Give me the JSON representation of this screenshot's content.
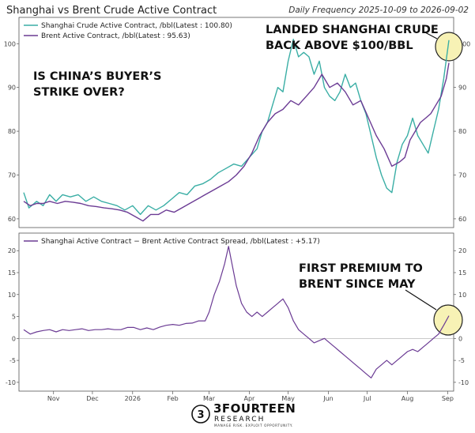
{
  "header": {
    "title": "Shanghai vs Brent Crude Active Contract",
    "subtitle": "Daily Frequency 2025-10-09 to 2026-09-02"
  },
  "colors": {
    "shanghai": "#3aaea5",
    "brent": "#6b3b94",
    "spread": "#6b3b94",
    "highlight_fill": "#f7f2b5",
    "highlight_stroke": "#222222"
  },
  "chart_data": [
    {
      "type": "line",
      "ylim": [
        58,
        106
      ],
      "yticks": [
        60,
        70,
        80,
        90,
        100
      ],
      "x_range": [
        0,
        328
      ],
      "annotations": [
        "IS CHINA’S BUYER’S",
        "STRIKE OVER?",
        "LANDED SHANGHAI CRUDE",
        "BACK ABOVE $100/BBL"
      ],
      "series": [
        {
          "name": "Shanghai Crude Active Contract, /bbl(Latest : 100.80)",
          "points": [
            [
              0,
              66
            ],
            [
              4,
              62.5
            ],
            [
              10,
              64
            ],
            [
              15,
              63
            ],
            [
              20,
              65.5
            ],
            [
              25,
              64
            ],
            [
              30,
              65.5
            ],
            [
              36,
              65
            ],
            [
              42,
              65.5
            ],
            [
              48,
              64
            ],
            [
              54,
              65
            ],
            [
              60,
              64
            ],
            [
              66,
              63.5
            ],
            [
              72,
              63
            ],
            [
              78,
              62
            ],
            [
              84,
              63
            ],
            [
              90,
              61
            ],
            [
              96,
              63
            ],
            [
              102,
              62
            ],
            [
              108,
              63
            ],
            [
              114,
              64.5
            ],
            [
              120,
              66
            ],
            [
              126,
              65.5
            ],
            [
              132,
              67.5
            ],
            [
              138,
              68
            ],
            [
              144,
              69
            ],
            [
              150,
              70.5
            ],
            [
              156,
              71.5
            ],
            [
              162,
              72.5
            ],
            [
              168,
              72
            ],
            [
              174,
              74
            ],
            [
              180,
              76
            ],
            [
              184,
              80
            ],
            [
              188,
              82
            ],
            [
              192,
              86
            ],
            [
              196,
              90
            ],
            [
              200,
              89
            ],
            [
              204,
              96
            ],
            [
              208,
              101
            ],
            [
              212,
              97
            ],
            [
              216,
              98
            ],
            [
              220,
              97
            ],
            [
              224,
              93
            ],
            [
              228,
              96
            ],
            [
              232,
              90
            ],
            [
              236,
              88
            ],
            [
              240,
              87
            ],
            [
              244,
              89
            ],
            [
              248,
              93
            ],
            [
              252,
              90
            ],
            [
              256,
              91
            ],
            [
              260,
              87
            ],
            [
              264,
              84
            ],
            [
              268,
              79
            ],
            [
              272,
              74
            ],
            [
              276,
              70
            ],
            [
              280,
              67
            ],
            [
              284,
              66
            ],
            [
              288,
              73
            ],
            [
              292,
              77
            ],
            [
              296,
              79
            ],
            [
              300,
              83
            ],
            [
              304,
              79
            ],
            [
              308,
              77
            ],
            [
              312,
              75
            ],
            [
              316,
              80
            ],
            [
              320,
              85
            ],
            [
              324,
              92
            ],
            [
              328,
              100.8
            ]
          ]
        },
        {
          "name": "Brent Active Contract, /bbl(Latest : 95.63)",
          "points": [
            [
              0,
              64
            ],
            [
              5,
              63
            ],
            [
              10,
              63.5
            ],
            [
              15,
              63.5
            ],
            [
              20,
              64
            ],
            [
              26,
              63.5
            ],
            [
              32,
              64
            ],
            [
              38,
              63.8
            ],
            [
              44,
              63.5
            ],
            [
              50,
              63
            ],
            [
              56,
              62.8
            ],
            [
              62,
              62.5
            ],
            [
              68,
              62.3
            ],
            [
              74,
              62
            ],
            [
              80,
              61.5
            ],
            [
              86,
              60.5
            ],
            [
              92,
              59.5
            ],
            [
              98,
              61
            ],
            [
              104,
              61
            ],
            [
              110,
              62
            ],
            [
              116,
              61.5
            ],
            [
              122,
              62.5
            ],
            [
              128,
              63.5
            ],
            [
              134,
              64.5
            ],
            [
              140,
              65.5
            ],
            [
              146,
              66.5
            ],
            [
              152,
              67.5
            ],
            [
              158,
              68.5
            ],
            [
              164,
              70
            ],
            [
              170,
              72
            ],
            [
              176,
              75
            ],
            [
              182,
              79
            ],
            [
              188,
              82
            ],
            [
              194,
              84
            ],
            [
              200,
              85
            ],
            [
              206,
              87
            ],
            [
              212,
              86
            ],
            [
              218,
              88
            ],
            [
              224,
              90
            ],
            [
              230,
              93
            ],
            [
              236,
              90
            ],
            [
              242,
              91
            ],
            [
              248,
              89
            ],
            [
              254,
              86
            ],
            [
              260,
              87
            ],
            [
              266,
              83
            ],
            [
              272,
              79
            ],
            [
              278,
              76
            ],
            [
              284,
              72
            ],
            [
              290,
              73
            ],
            [
              294,
              74
            ],
            [
              298,
              78
            ],
            [
              302,
              80
            ],
            [
              306,
              82
            ],
            [
              310,
              83
            ],
            [
              314,
              84
            ],
            [
              318,
              86
            ],
            [
              322,
              88
            ],
            [
              326,
              92
            ],
            [
              328,
              95.63
            ]
          ]
        }
      ]
    },
    {
      "type": "line",
      "ylim": [
        -12,
        24
      ],
      "yticks": [
        -10,
        -5,
        0,
        5,
        10,
        15,
        20
      ],
      "xticks": [
        "Nov",
        "Dec",
        "2026",
        "Feb",
        "Mar",
        "Apr",
        "May",
        "Jun",
        "Jul",
        "Aug",
        "Sep"
      ],
      "xtick_positions": [
        23,
        53,
        84,
        115,
        143,
        174,
        204,
        235,
        265,
        296,
        327
      ],
      "x_range": [
        0,
        328
      ],
      "annotations": [
        "FIRST PREMIUM TO",
        "BRENT SINCE MAY"
      ],
      "series": [
        {
          "name": "Shanghai Active Contract − Brent Active Contract Spread, /bbl(Latest : +5.17)",
          "points": [
            [
              0,
              2
            ],
            [
              5,
              1
            ],
            [
              10,
              1.5
            ],
            [
              15,
              1.8
            ],
            [
              20,
              2
            ],
            [
              25,
              1.5
            ],
            [
              30,
              2
            ],
            [
              35,
              1.8
            ],
            [
              40,
              2
            ],
            [
              45,
              2.2
            ],
            [
              50,
              1.8
            ],
            [
              55,
              2
            ],
            [
              60,
              2
            ],
            [
              65,
              2.2
            ],
            [
              70,
              2
            ],
            [
              75,
              2
            ],
            [
              80,
              2.5
            ],
            [
              85,
              2.5
            ],
            [
              90,
              2
            ],
            [
              95,
              2.4
            ],
            [
              100,
              2
            ],
            [
              105,
              2.6
            ],
            [
              110,
              3
            ],
            [
              115,
              3.2
            ],
            [
              120,
              3
            ],
            [
              125,
              3.4
            ],
            [
              130,
              3.5
            ],
            [
              135,
              4
            ],
            [
              140,
              4
            ],
            [
              143,
              6
            ],
            [
              147,
              10
            ],
            [
              151,
              13
            ],
            [
              155,
              17
            ],
            [
              158,
              21
            ],
            [
              160,
              18
            ],
            [
              164,
              12
            ],
            [
              168,
              8
            ],
            [
              172,
              6
            ],
            [
              176,
              5
            ],
            [
              180,
              6
            ],
            [
              184,
              5
            ],
            [
              188,
              6
            ],
            [
              192,
              7
            ],
            [
              196,
              8
            ],
            [
              200,
              9
            ],
            [
              204,
              7
            ],
            [
              208,
              4
            ],
            [
              212,
              2
            ],
            [
              216,
              1
            ],
            [
              220,
              0
            ],
            [
              224,
              -1
            ],
            [
              228,
              -0.5
            ],
            [
              232,
              0
            ],
            [
              236,
              -1
            ],
            [
              240,
              -2
            ],
            [
              244,
              -3
            ],
            [
              248,
              -4
            ],
            [
              252,
              -5
            ],
            [
              256,
              -6
            ],
            [
              260,
              -7
            ],
            [
              264,
              -8
            ],
            [
              268,
              -9
            ],
            [
              272,
              -7
            ],
            [
              276,
              -6
            ],
            [
              280,
              -5
            ],
            [
              284,
              -6
            ],
            [
              288,
              -5
            ],
            [
              292,
              -4
            ],
            [
              296,
              -3
            ],
            [
              300,
              -2.5
            ],
            [
              304,
              -3
            ],
            [
              308,
              -2
            ],
            [
              312,
              -1
            ],
            [
              316,
              0
            ],
            [
              320,
              1
            ],
            [
              324,
              3
            ],
            [
              328,
              5.17
            ]
          ]
        }
      ]
    }
  ],
  "branding": {
    "logo_word": "3FOURTEEN",
    "logo_sub": "RESEARCH",
    "tagline": "MANAGE RISK. EXPLOIT OPPORTUNITY."
  }
}
